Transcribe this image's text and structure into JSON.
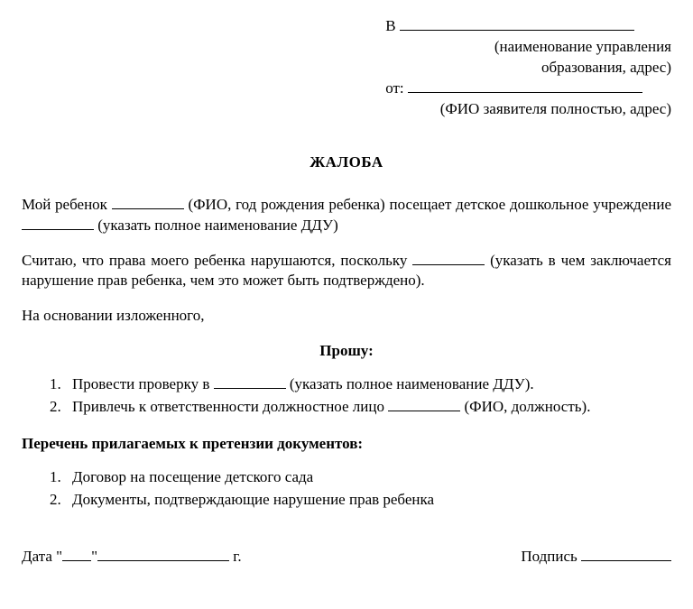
{
  "header": {
    "to_prefix": "В",
    "to_sub_line1": "(наименование управления",
    "to_sub_line2": "образования, адрес)",
    "from_prefix": "от:",
    "from_sub": "(ФИО заявителя полностью, адрес)"
  },
  "title": "ЖАЛОБА",
  "body": {
    "p1_a": "Мой ребенок ",
    "p1_b": " (ФИО, год рождения ребенка) посещает детское дошкольное учреждение ",
    "p1_c": " (указать полное наименование ДДУ)",
    "p2_a": "Считаю, что права моего ребенка нарушаются, поскольку ",
    "p2_b": " (указать в чем заключается нарушение прав ребенка, чем это может быть подтверждено).",
    "p3": "На основании изложенного,"
  },
  "request_title": "Прошу:",
  "requests": {
    "r1_a": "Провести проверку в ",
    "r1_b": " (указать полное наименование ДДУ).",
    "r2_a": "Привлечь к ответственности должностное лицо ",
    "r2_b": " (ФИО, должность)."
  },
  "attachments_title": "Перечень прилагаемых к претензии документов",
  "attachments": {
    "a1": "Договор на посещение детского сада",
    "a2": "Документы, подтверждающие нарушение прав ребенка"
  },
  "footer": {
    "date_label": "Дата",
    "year_suffix": "г.",
    "sign_label": "Подпись"
  }
}
